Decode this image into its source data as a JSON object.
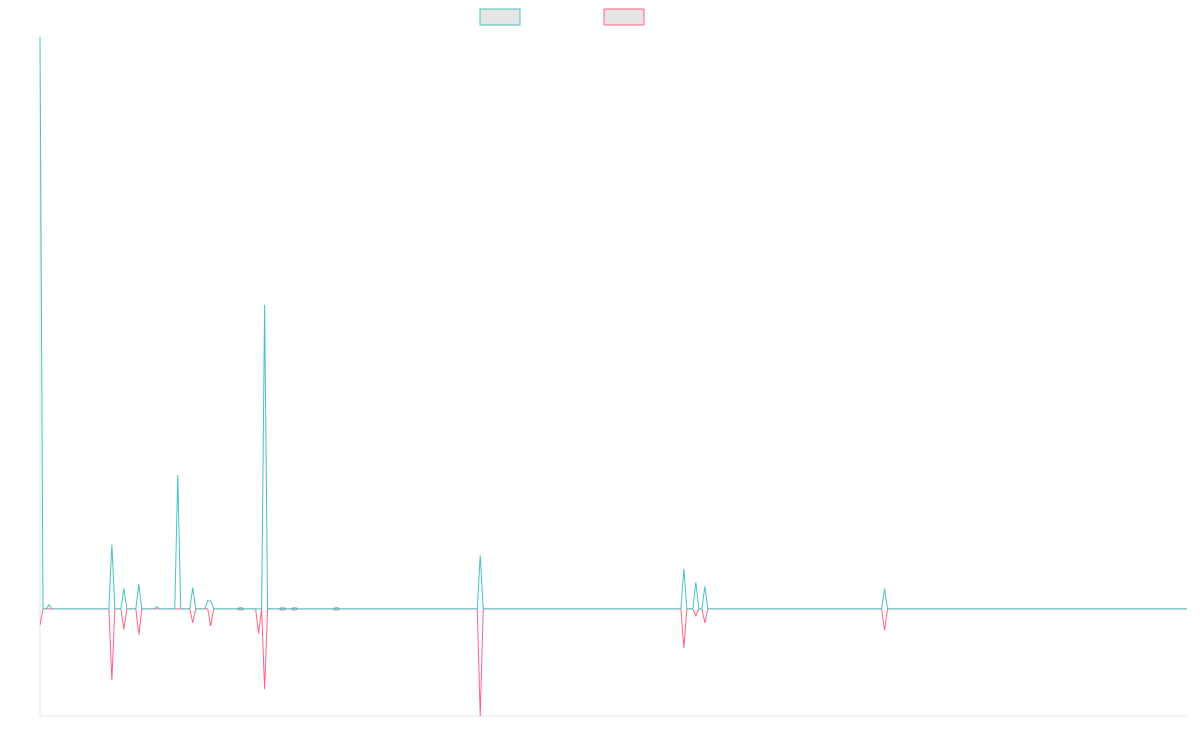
{
  "chart_data": {
    "type": "line",
    "title": "",
    "xlabel": "",
    "ylabel": "",
    "grid": false,
    "legend_position": "top-center",
    "x": [
      0,
      1,
      2,
      3,
      4,
      5,
      6,
      7,
      8,
      9,
      10,
      11,
      12,
      13,
      14,
      15,
      16,
      17,
      18,
      19,
      20,
      21,
      22,
      23,
      24,
      25,
      26,
      27,
      28,
      29,
      30,
      31,
      32,
      33,
      34,
      35,
      36,
      37,
      38,
      39,
      40,
      41,
      42,
      43,
      44,
      45,
      46,
      47,
      48,
      49,
      50,
      51,
      52,
      53,
      54,
      55,
      56,
      57,
      58,
      59,
      60,
      61,
      62,
      63,
      64,
      65,
      66,
      67,
      68,
      69,
      70,
      71,
      72,
      73,
      74,
      75,
      76,
      77,
      78,
      79,
      80,
      81,
      82,
      83,
      84,
      85,
      86,
      87,
      88,
      89,
      90,
      91,
      92,
      93,
      94,
      95,
      96,
      97,
      98,
      99,
      100,
      101,
      102,
      103,
      104,
      105,
      106,
      107,
      108,
      109,
      110,
      111,
      112,
      113,
      114,
      115,
      116,
      117,
      118,
      119,
      120,
      121,
      122,
      123,
      124,
      125,
      126,
      127,
      128,
      129,
      130,
      131,
      132,
      133,
      134,
      135,
      136,
      137,
      138,
      139,
      140,
      141,
      142,
      143,
      144,
      145,
      146,
      147,
      148,
      149,
      150,
      151,
      152,
      153,
      154,
      155,
      156,
      157,
      158,
      159,
      160,
      161,
      162,
      163,
      164,
      165,
      166,
      167,
      168,
      169,
      170,
      171,
      172,
      173,
      174,
      175,
      176,
      177,
      178,
      179,
      180,
      181,
      182,
      183,
      184,
      185,
      186,
      187,
      188,
      189,
      190,
      191,
      192,
      193,
      194,
      195,
      196,
      197,
      198,
      199,
      200,
      201,
      202,
      203,
      204,
      205,
      206,
      207,
      208,
      209,
      210,
      211,
      212,
      213,
      214,
      215,
      216,
      217,
      218,
      219,
      220,
      221,
      222,
      223,
      224,
      225,
      226,
      227,
      228,
      229,
      230,
      231,
      232,
      233,
      234,
      235,
      236,
      237,
      238,
      239,
      240,
      241,
      242,
      243,
      244,
      245,
      246,
      247,
      248,
      249,
      250,
      251,
      252,
      253,
      254,
      255,
      256,
      257,
      258,
      259,
      260,
      261,
      262,
      263,
      264,
      265,
      266,
      267,
      268,
      269,
      270,
      271,
      272,
      273,
      274,
      275,
      276,
      277,
      278,
      279,
      280,
      281,
      282,
      283,
      284,
      285,
      286,
      287,
      288,
      289,
      290,
      291,
      292,
      293,
      294,
      295,
      296,
      297,
      298,
      299,
      300,
      301,
      302,
      303,
      304,
      305,
      306,
      307,
      308,
      309,
      310,
      311,
      312,
      313,
      314,
      315,
      316,
      317,
      318,
      319,
      320,
      321,
      322,
      323,
      324,
      325,
      326,
      327,
      328,
      329,
      330,
      331,
      332,
      333,
      334,
      335,
      336,
      337,
      338,
      339,
      340,
      341,
      342,
      343,
      344,
      345,
      346,
      347,
      348,
      349,
      350,
      351,
      352,
      353,
      354,
      355,
      356,
      357,
      358,
      359,
      360,
      361,
      362,
      363,
      364,
      365,
      366,
      367,
      368,
      369,
      370,
      371,
      372,
      373,
      374,
      375,
      376,
      377,
      378,
      379,
      380,
      381,
      382,
      383
    ],
    "sparse_series": [
      {
        "color": "#4bc0c0",
        "points": [
          [
            0,
            106.8
          ],
          [
            3,
            0.8
          ],
          [
            24,
            12.0
          ],
          [
            28,
            3.8
          ],
          [
            33,
            4.6
          ],
          [
            39,
            0.4
          ],
          [
            46,
            25.0
          ],
          [
            51,
            4.0
          ],
          [
            56,
            1.5
          ],
          [
            57,
            1.5
          ],
          [
            75,
            56.8
          ],
          [
            147,
            10.0
          ],
          [
            215,
            7.5
          ],
          [
            219,
            5.0
          ],
          [
            222,
            4.2
          ],
          [
            282,
            3.8
          ]
        ]
      },
      {
        "color": "#ff6384",
        "points": [
          [
            0,
            -3.0
          ],
          [
            24,
            -13.3
          ],
          [
            28,
            -3.8
          ],
          [
            33,
            -4.8
          ],
          [
            51,
            -2.6
          ],
          [
            57,
            -3.2
          ],
          [
            73,
            -4.6
          ],
          [
            75,
            -15.0
          ],
          [
            147,
            -20.0
          ],
          [
            215,
            -7.3
          ],
          [
            219,
            -1.3
          ],
          [
            222,
            -2.6
          ],
          [
            282,
            -4.0
          ]
        ]
      }
    ],
    "ylim": [
      -20,
      107
    ],
    "legend": [
      {
        "color": "#4bc0c0"
      },
      {
        "color": "#ff6384"
      }
    ],
    "hidden_markers": [
      [
        67,
        0
      ],
      [
        85,
        0
      ],
      [
        99,
        0
      ],
      [
        81,
        0
      ]
    ]
  }
}
